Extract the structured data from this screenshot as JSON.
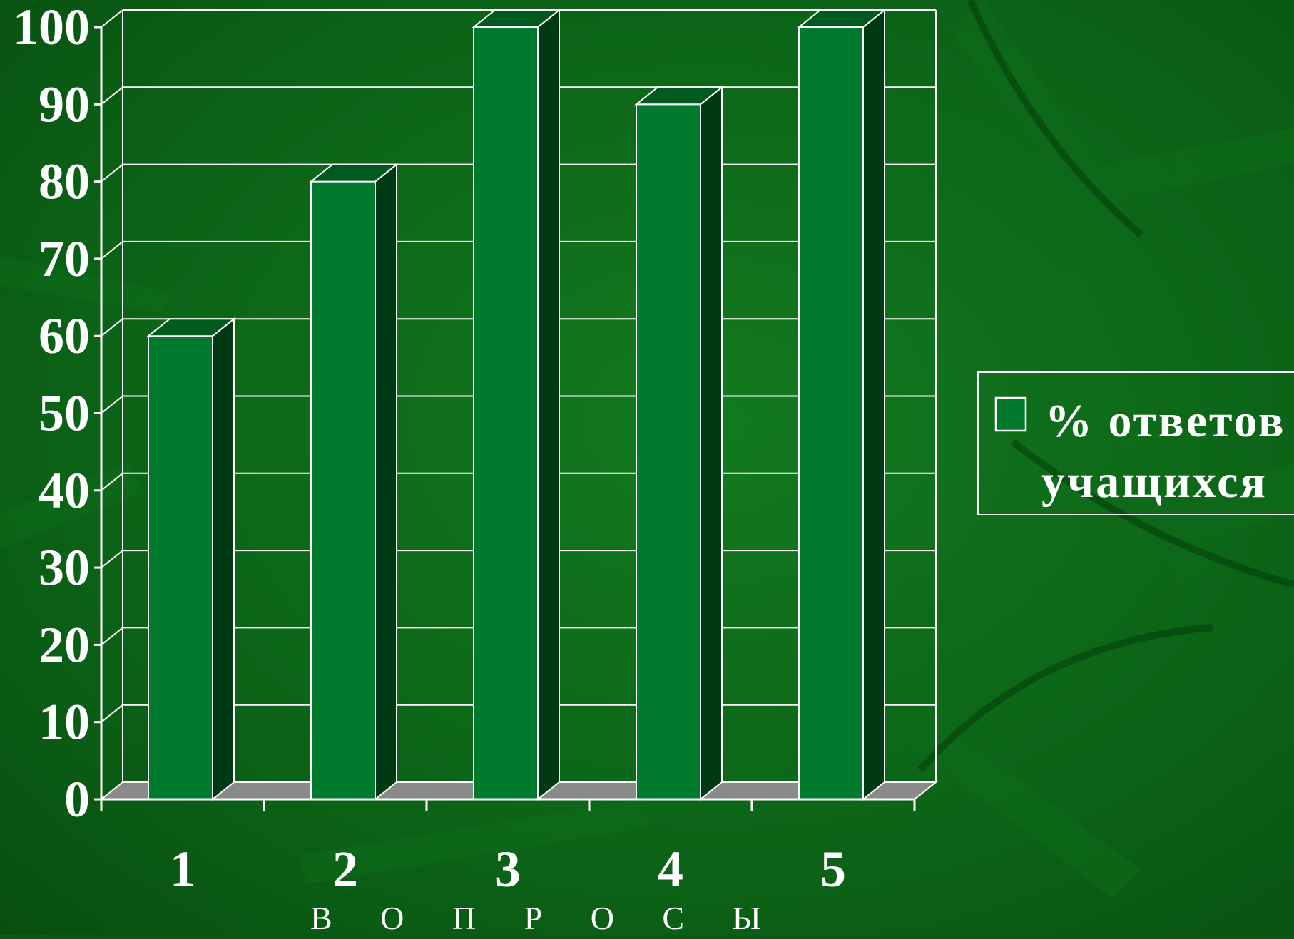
{
  "chart_data": {
    "type": "bar",
    "categories": [
      "1",
      "2",
      "3",
      "4",
      "5"
    ],
    "series": [
      {
        "name": "% ответов учащихся",
        "values": [
          60,
          80,
          100,
          90,
          100
        ]
      }
    ],
    "title": "",
    "xlabel": "В О П Р О С Ы",
    "ylabel": "",
    "ylim": [
      0,
      100
    ],
    "yticks": [
      "0",
      "10",
      "20",
      "30",
      "40",
      "50",
      "60",
      "70",
      "80",
      "90",
      "100"
    ],
    "grid": true,
    "legend_position": "right",
    "style": "3d"
  },
  "legend": {
    "line1": "% ответов",
    "line2": "учащихся"
  },
  "colors": {
    "background": "#0a5a14",
    "bar_front": "#007a2c",
    "bar_top": "#005a20",
    "bar_side": "#003a14",
    "floor": "#8a8a8a",
    "grid": "#ffffff",
    "text": "#ffffff"
  }
}
